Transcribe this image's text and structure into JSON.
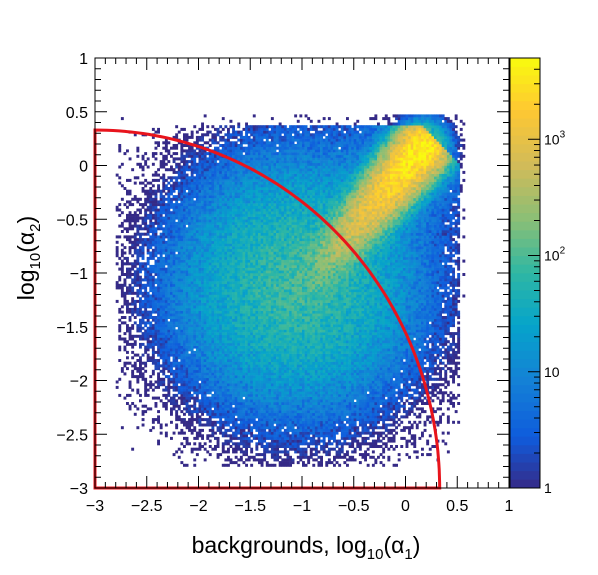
{
  "chart_data": {
    "type": "heatmap",
    "title": "",
    "xlabel": "backgrounds, log10(α1)",
    "xlabel_parts": {
      "prefix": "backgrounds, log",
      "sub1": "10",
      "mid": "(α",
      "sub2": "1",
      "suffix": ")"
    },
    "ylabel": "log10(α2)",
    "ylabel_parts": {
      "prefix": "log",
      "sub1": "10",
      "mid": "(α",
      "sub2": "2",
      "suffix": ")"
    },
    "xlim": [
      -3,
      1
    ],
    "ylim": [
      -3,
      1
    ],
    "x_ticks": [
      "−3",
      "−2.5",
      "−2",
      "−1.5",
      "−1",
      "−0.5",
      "0",
      "0.5",
      "1"
    ],
    "x_tick_values": [
      -3,
      -2.5,
      -2,
      -1.5,
      -1,
      -0.5,
      0,
      0.5,
      1
    ],
    "y_ticks": [
      "−3",
      "−2.5",
      "−2",
      "−1.5",
      "−1",
      "−0.5",
      "0",
      "0.5",
      "1"
    ],
    "y_tick_values": [
      -3,
      -2.5,
      -2,
      -1.5,
      -1,
      -0.5,
      0,
      0.5,
      1
    ],
    "colorbar": {
      "scale": "log",
      "range": [
        1,
        5000
      ],
      "labels": [
        {
          "value": 1,
          "base": "1",
          "exp": ""
        },
        {
          "value": 10,
          "base": "10",
          "exp": ""
        },
        {
          "value": 100,
          "base": "10",
          "exp": "2"
        },
        {
          "value": 1000,
          "base": "10",
          "exp": "3"
        }
      ]
    },
    "curve": {
      "description_shape": "quarter-ellipse boundary",
      "color": "#e8141c",
      "center": [
        -3,
        -3
      ],
      "radius_x": 3.33,
      "radius_y": 3.33
    },
    "density": {
      "blob_center": [
        -1.05,
        -1.1
      ],
      "blob_spread": [
        0.55,
        0.55
      ],
      "ridge_from": [
        -1.2,
        -1.4
      ],
      "ridge_to": [
        0.15,
        0.15
      ],
      "peak_count": 5000
    }
  }
}
